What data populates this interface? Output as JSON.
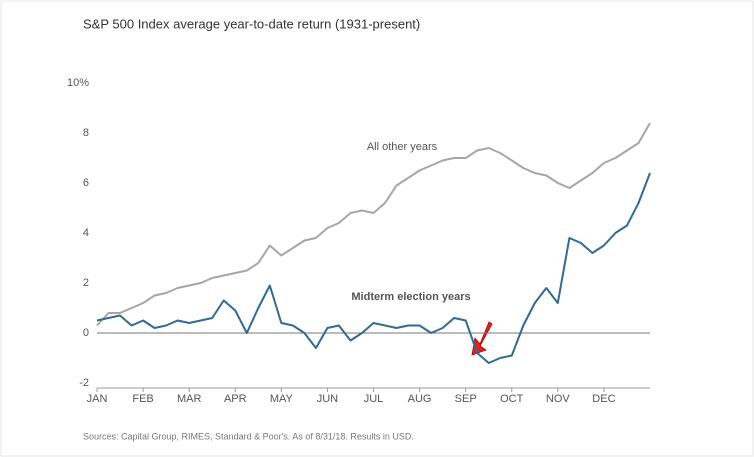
{
  "chart_data": {
    "type": "line",
    "title": "S&P 500 Index average year-to-date return (1931-present)",
    "source": "Sources: Capital Group, RIMES, Standard & Poor's. As of 8/31/18. Results in USD.",
    "x": [
      0,
      0.25,
      0.5,
      0.75,
      1,
      1.25,
      1.5,
      1.75,
      2,
      2.25,
      2.5,
      2.75,
      3,
      3.25,
      3.5,
      3.75,
      4,
      4.25,
      4.5,
      4.75,
      5,
      5.25,
      5.5,
      5.75,
      6,
      6.25,
      6.5,
      6.75,
      7,
      7.25,
      7.5,
      7.75,
      8,
      8.25,
      8.5,
      8.75,
      9,
      9.25,
      9.5,
      9.75,
      10,
      10.25,
      10.5,
      10.75,
      11,
      11.25,
      11.5,
      11.75,
      12
    ],
    "xlim": [
      0,
      12
    ],
    "xticks": [
      {
        "value": 0,
        "label": "JAN"
      },
      {
        "value": 1,
        "label": "FEB"
      },
      {
        "value": 2,
        "label": "MAR"
      },
      {
        "value": 3,
        "label": "APR"
      },
      {
        "value": 4,
        "label": "MAY"
      },
      {
        "value": 5,
        "label": "JUN"
      },
      {
        "value": 6,
        "label": "JUL"
      },
      {
        "value": 7,
        "label": "AUG"
      },
      {
        "value": 8,
        "label": "SEP"
      },
      {
        "value": 9,
        "label": "OCT"
      },
      {
        "value": 10,
        "label": "NOV"
      },
      {
        "value": 11,
        "label": "DEC"
      }
    ],
    "ylim": [
      -2,
      10
    ],
    "yticks": [
      -2,
      0,
      2,
      4,
      6,
      8,
      {
        "value": 10,
        "label": "10%"
      }
    ],
    "series": [
      {
        "name": "All other years",
        "color": "#a6a6a6",
        "values": [
          0.3,
          0.8,
          0.8,
          1.0,
          1.2,
          1.5,
          1.6,
          1.8,
          1.9,
          2.0,
          2.2,
          2.3,
          2.4,
          2.5,
          2.8,
          3.5,
          3.1,
          3.4,
          3.7,
          3.8,
          4.2,
          4.4,
          4.8,
          4.9,
          4.8,
          5.2,
          5.9,
          6.2,
          6.5,
          6.7,
          6.9,
          7.0,
          7.0,
          7.3,
          7.4,
          7.2,
          6.9,
          6.6,
          6.4,
          6.3,
          6.0,
          5.8,
          6.1,
          6.4,
          6.8,
          7.0,
          7.3,
          7.6,
          8.4
        ]
      },
      {
        "name": "Midterm election years",
        "color": "#2f6a99",
        "values": [
          0.5,
          0.6,
          0.7,
          0.3,
          0.5,
          0.2,
          0.3,
          0.5,
          0.4,
          0.5,
          0.6,
          1.3,
          0.9,
          0.0,
          1.0,
          1.9,
          0.4,
          0.3,
          0.0,
          -0.6,
          0.2,
          0.3,
          -0.3,
          0.0,
          0.4,
          0.3,
          0.2,
          0.3,
          0.3,
          0.0,
          0.2,
          0.6,
          0.5,
          -0.8,
          -1.2,
          -1.0,
          -0.9,
          0.3,
          1.2,
          1.8,
          1.2,
          3.8,
          3.6,
          3.2,
          3.5,
          4.0,
          4.3,
          5.2,
          6.4
        ]
      }
    ]
  }
}
